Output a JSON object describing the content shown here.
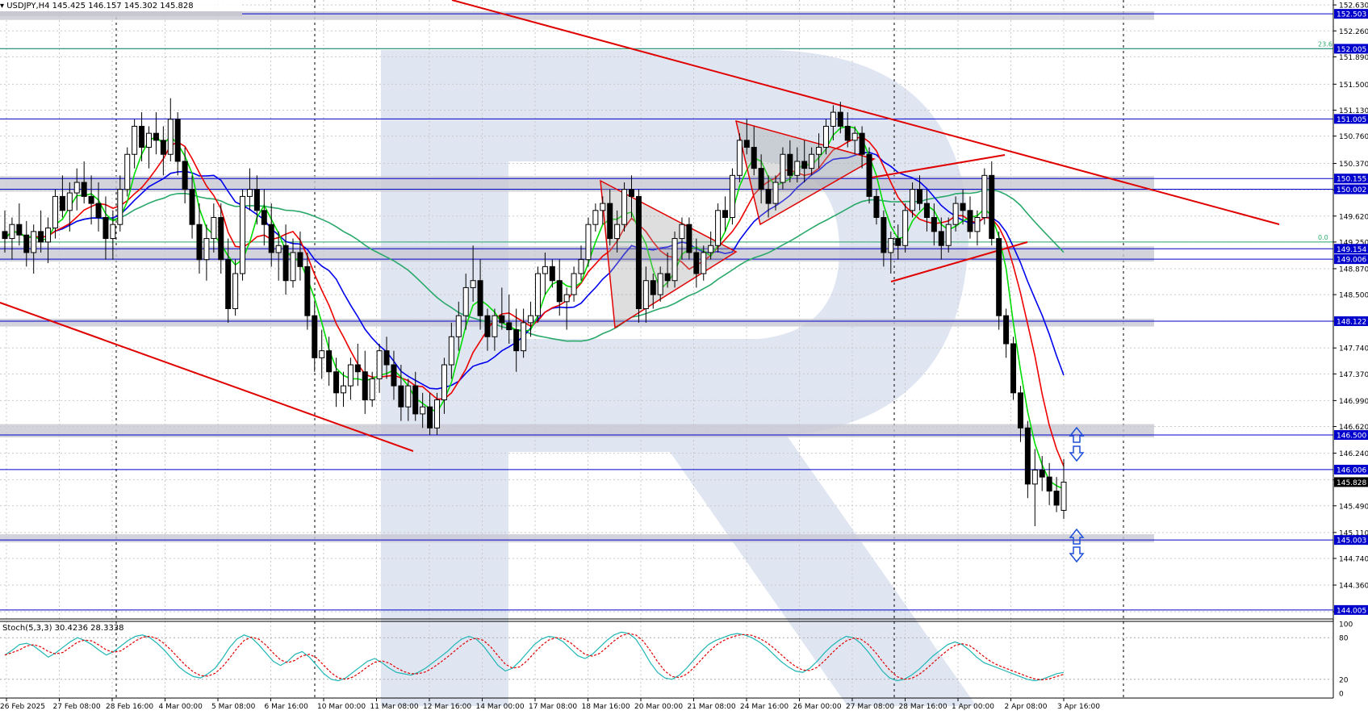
{
  "header": {
    "symbol_text": "USDJPY,H4  145.425 146.157 145.302 145.828",
    "stoch_text": "Stoch(5,3,3) 30.4236 28.3338"
  },
  "colors": {
    "bull_candle": "#ffffff",
    "bear_candle": "#000000",
    "ma_fast": "#00dd00",
    "ma_mid": "#ee0000",
    "ma_slow": "#0000ee",
    "ma_long": "#2aa86a",
    "level_line": "#0000cc",
    "level_band": "#c8c8d2",
    "trend_line": "#e00000",
    "stoch_main": "#1fb5b5",
    "stoch_signal": "#e00000",
    "watermark": "#dfe6f2",
    "arrow": "#1e4fd8"
  },
  "chart_data": {
    "type": "candlestick",
    "title": "USDJPY,H4",
    "ohlc_readout": {
      "open": 145.425,
      "high": 146.157,
      "low": 145.302,
      "close": 145.828
    },
    "ylim": [
      143.9,
      152.7
    ],
    "price_ticks": [
      "152.630",
      "152.260",
      "151.890",
      "151.500",
      "151.130",
      "150.760",
      "150.370",
      "149.990",
      "149.620",
      "149.250",
      "148.870",
      "148.500",
      "148.120",
      "147.740",
      "147.370",
      "146.990",
      "146.620",
      "146.240",
      "145.860",
      "145.490",
      "145.110",
      "144.740",
      "144.360",
      "143.980"
    ],
    "levels": [
      {
        "label": "152.503",
        "price": 152.503
      },
      {
        "label": "152.005",
        "price": 152.005
      },
      {
        "label": "151.005",
        "price": 151.005
      },
      {
        "label": "150.155",
        "price": 150.155
      },
      {
        "label": "150.002",
        "price": 150.002
      },
      {
        "label": "149.154",
        "price": 149.154
      },
      {
        "label": "149.006",
        "price": 149.006
      },
      {
        "label": "148.122",
        "price": 148.122
      },
      {
        "label": "146.500",
        "price": 146.5
      },
      {
        "label": "146.006",
        "price": 146.006
      },
      {
        "label": "145.003",
        "price": 145.003
      },
      {
        "label": "144.005",
        "price": 144.005
      }
    ],
    "current_price_label": "145.828",
    "fib_labels": [
      {
        "text": "23.6",
        "price": 152.005
      },
      {
        "text": "0.0",
        "price": 149.25
      }
    ],
    "zones": [
      {
        "top": 150.155,
        "bottom": 150.002
      },
      {
        "top": 149.154,
        "bottom": 149.006
      },
      {
        "top": 148.122,
        "bottom": 148.08
      },
      {
        "top": 146.62,
        "bottom": 146.5
      },
      {
        "top": 145.05,
        "bottom": 145.003
      },
      {
        "top": 152.503,
        "bottom": 152.45
      }
    ],
    "time_labels": [
      "26 Feb 2025",
      "27 Feb 08:00",
      "28 Feb 16:00",
      "4 Mar 00:00",
      "5 Mar 08:00",
      "6 Mar 16:00",
      "10 Mar 00:00",
      "11 Mar 08:00",
      "12 Mar 16:00",
      "14 Mar 00:00",
      "17 Mar 08:00",
      "18 Mar 16:00",
      "20 Mar 00:00",
      "21 Mar 08:00",
      "24 Mar 16:00",
      "26 Mar 00:00",
      "27 Mar 08:00",
      "28 Mar 16:00",
      "1 Apr 00:00",
      "2 Apr 08:00",
      "3 Apr 16:00"
    ],
    "candles": [
      [
        149.4,
        149.7,
        149.1,
        149.3
      ],
      [
        149.3,
        149.6,
        149.0,
        149.5
      ],
      [
        149.5,
        149.8,
        149.2,
        149.35
      ],
      [
        149.35,
        149.55,
        148.9,
        149.1
      ],
      [
        149.1,
        149.5,
        148.8,
        149.4
      ],
      [
        149.4,
        149.7,
        149.1,
        149.25
      ],
      [
        149.25,
        149.6,
        148.95,
        149.45
      ],
      [
        149.45,
        150.0,
        149.3,
        149.9
      ],
      [
        149.9,
        150.2,
        149.6,
        149.7
      ],
      [
        149.7,
        150.1,
        149.4,
        149.95
      ],
      [
        149.95,
        150.3,
        149.7,
        150.1
      ],
      [
        150.1,
        150.4,
        149.8,
        149.9
      ],
      [
        149.9,
        150.2,
        149.5,
        149.8
      ],
      [
        149.8,
        150.1,
        149.4,
        149.6
      ],
      [
        149.6,
        149.9,
        149.0,
        149.3
      ],
      [
        149.3,
        149.7,
        149.0,
        149.5
      ],
      [
        149.5,
        150.2,
        149.4,
        150.0
      ],
      [
        150.0,
        150.6,
        149.9,
        150.5
      ],
      [
        150.5,
        151.0,
        150.3,
        150.9
      ],
      [
        150.9,
        151.1,
        150.4,
        150.6
      ],
      [
        150.6,
        150.9,
        150.3,
        150.8
      ],
      [
        150.8,
        151.1,
        150.5,
        150.7
      ],
      [
        150.7,
        150.9,
        150.2,
        150.5
      ],
      [
        150.5,
        151.3,
        150.4,
        151.0
      ],
      [
        151.0,
        151.1,
        150.2,
        150.4
      ],
      [
        150.4,
        150.6,
        149.8,
        150.0
      ],
      [
        150.0,
        150.2,
        149.3,
        149.5
      ],
      [
        149.5,
        149.8,
        148.8,
        149.0
      ],
      [
        149.0,
        149.5,
        148.7,
        149.3
      ],
      [
        149.3,
        149.8,
        149.1,
        149.6
      ],
      [
        149.6,
        149.8,
        148.8,
        149.0
      ],
      [
        149.0,
        149.3,
        148.1,
        148.3
      ],
      [
        148.3,
        149.0,
        148.2,
        148.8
      ],
      [
        148.8,
        150.0,
        148.7,
        149.9
      ],
      [
        149.9,
        150.3,
        149.7,
        150.0
      ],
      [
        150.0,
        150.2,
        149.5,
        149.7
      ],
      [
        149.7,
        150.0,
        149.2,
        149.5
      ],
      [
        149.5,
        149.8,
        148.9,
        149.1
      ],
      [
        149.1,
        149.4,
        148.7,
        149.2
      ],
      [
        149.2,
        149.5,
        148.5,
        148.7
      ],
      [
        148.7,
        149.3,
        148.6,
        149.1
      ],
      [
        149.1,
        149.4,
        148.7,
        148.9
      ],
      [
        148.9,
        149.1,
        148.0,
        148.2
      ],
      [
        148.2,
        148.4,
        147.4,
        147.6
      ],
      [
        147.6,
        148.0,
        147.3,
        147.7
      ],
      [
        147.7,
        147.9,
        147.2,
        147.4
      ],
      [
        147.4,
        147.6,
        146.9,
        147.1
      ],
      [
        147.1,
        147.4,
        146.9,
        147.2
      ],
      [
        147.2,
        147.6,
        147.0,
        147.5
      ],
      [
        147.5,
        147.8,
        147.2,
        147.4
      ],
      [
        147.4,
        147.7,
        146.8,
        147.0
      ],
      [
        147.0,
        147.4,
        146.9,
        147.3
      ],
      [
        147.3,
        147.8,
        147.1,
        147.7
      ],
      [
        147.7,
        147.9,
        147.3,
        147.5
      ],
      [
        147.5,
        147.7,
        147.0,
        147.2
      ],
      [
        147.2,
        147.5,
        146.7,
        146.9
      ],
      [
        146.9,
        147.3,
        146.7,
        147.2
      ],
      [
        147.2,
        147.4,
        146.7,
        146.8
      ],
      [
        146.8,
        147.1,
        146.6,
        146.9
      ],
      [
        146.9,
        147.1,
        146.5,
        146.6
      ],
      [
        146.6,
        147.1,
        146.5,
        147.0
      ],
      [
        147.0,
        147.6,
        146.8,
        147.5
      ],
      [
        147.5,
        148.1,
        147.3,
        147.9
      ],
      [
        147.9,
        148.4,
        147.7,
        148.2
      ],
      [
        148.2,
        148.8,
        148.0,
        148.6
      ],
      [
        148.6,
        149.2,
        148.4,
        148.7
      ],
      [
        148.7,
        149.0,
        148.0,
        148.2
      ],
      [
        148.2,
        148.3,
        147.7,
        147.9
      ],
      [
        147.9,
        148.3,
        147.7,
        148.2
      ],
      [
        148.2,
        148.6,
        148.0,
        148.1
      ],
      [
        148.1,
        148.5,
        147.8,
        148.0
      ],
      [
        148.0,
        148.3,
        147.4,
        147.7
      ],
      [
        147.7,
        148.3,
        147.6,
        148.1
      ],
      [
        148.1,
        148.4,
        147.9,
        148.2
      ],
      [
        148.2,
        148.9,
        148.1,
        148.8
      ],
      [
        148.8,
        149.1,
        148.5,
        148.9
      ],
      [
        148.9,
        149.0,
        148.6,
        148.7
      ],
      [
        148.7,
        149.0,
        148.2,
        148.4
      ],
      [
        148.4,
        148.6,
        148.0,
        148.5
      ],
      [
        148.5,
        148.9,
        148.4,
        148.8
      ],
      [
        148.8,
        149.2,
        148.7,
        149.0
      ],
      [
        149.0,
        149.6,
        148.9,
        149.5
      ],
      [
        149.5,
        149.8,
        149.4,
        149.7
      ],
      [
        149.7,
        149.9,
        149.5,
        149.8
      ],
      [
        149.8,
        150.0,
        149.2,
        149.3
      ],
      [
        149.3,
        149.7,
        149.1,
        149.5
      ],
      [
        149.5,
        150.1,
        149.4,
        150.0
      ],
      [
        150.0,
        150.2,
        149.6,
        149.9
      ],
      [
        149.9,
        150.0,
        148.1,
        148.3
      ],
      [
        148.3,
        148.9,
        148.1,
        148.7
      ],
      [
        148.7,
        148.8,
        148.3,
        148.5
      ],
      [
        148.5,
        148.9,
        148.4,
        148.8
      ],
      [
        148.8,
        149.1,
        148.6,
        148.7
      ],
      [
        148.7,
        149.4,
        148.6,
        149.3
      ],
      [
        149.3,
        149.6,
        149.0,
        149.5
      ],
      [
        149.5,
        149.6,
        149.0,
        149.1
      ],
      [
        149.1,
        149.3,
        148.6,
        148.8
      ],
      [
        148.8,
        149.2,
        148.7,
        149.1
      ],
      [
        149.1,
        149.4,
        149.0,
        149.2
      ],
      [
        149.2,
        149.8,
        149.1,
        149.7
      ],
      [
        149.7,
        149.9,
        149.4,
        149.6
      ],
      [
        149.6,
        150.3,
        149.5,
        150.2
      ],
      [
        150.2,
        150.8,
        150.1,
        150.7
      ],
      [
        150.7,
        151.0,
        150.5,
        150.6
      ],
      [
        150.6,
        150.9,
        150.2,
        150.3
      ],
      [
        150.3,
        150.5,
        149.8,
        150.0
      ],
      [
        150.0,
        150.2,
        149.6,
        149.8
      ],
      [
        149.8,
        150.2,
        149.7,
        150.1
      ],
      [
        150.1,
        150.6,
        150.0,
        150.5
      ],
      [
        150.5,
        150.7,
        150.1,
        150.2
      ],
      [
        150.2,
        150.6,
        150.1,
        150.4
      ],
      [
        150.4,
        150.7,
        150.1,
        150.3
      ],
      [
        150.3,
        150.6,
        150.2,
        150.5
      ],
      [
        150.5,
        150.8,
        150.3,
        150.6
      ],
      [
        150.6,
        151.0,
        150.5,
        150.9
      ],
      [
        150.9,
        151.2,
        150.7,
        151.1
      ],
      [
        151.1,
        151.25,
        150.8,
        150.9
      ],
      [
        150.9,
        151.1,
        150.6,
        150.7
      ],
      [
        150.7,
        150.9,
        150.5,
        150.8
      ],
      [
        150.8,
        150.9,
        150.3,
        150.5
      ],
      [
        150.5,
        150.6,
        149.8,
        149.9
      ],
      [
        149.9,
        150.0,
        149.5,
        149.6
      ],
      [
        149.6,
        149.7,
        148.9,
        149.1
      ],
      [
        149.1,
        149.4,
        148.8,
        149.3
      ],
      [
        149.3,
        149.5,
        149.0,
        149.2
      ],
      [
        149.2,
        149.8,
        149.1,
        149.7
      ],
      [
        149.7,
        150.1,
        149.6,
        150.0
      ],
      [
        150.0,
        150.2,
        149.7,
        149.8
      ],
      [
        149.8,
        150.0,
        149.4,
        149.6
      ],
      [
        149.6,
        149.8,
        149.2,
        149.4
      ],
      [
        149.4,
        149.6,
        149.0,
        149.2
      ],
      [
        149.2,
        149.6,
        149.1,
        149.5
      ],
      [
        149.5,
        149.9,
        149.4,
        149.8
      ],
      [
        149.8,
        150.0,
        149.5,
        149.7
      ],
      [
        149.7,
        149.9,
        149.3,
        149.4
      ],
      [
        149.4,
        149.7,
        149.2,
        149.6
      ],
      [
        149.6,
        150.3,
        149.5,
        150.2
      ],
      [
        150.2,
        150.4,
        149.2,
        149.3
      ],
      [
        149.3,
        149.4,
        148.0,
        148.2
      ],
      [
        148.2,
        148.3,
        147.6,
        147.8
      ],
      [
        147.8,
        147.9,
        147.0,
        147.1
      ],
      [
        147.1,
        147.2,
        146.4,
        146.6
      ],
      [
        146.6,
        146.7,
        145.6,
        145.8
      ],
      [
        145.8,
        146.3,
        145.2,
        146.0
      ],
      [
        146.0,
        146.2,
        145.7,
        145.9
      ],
      [
        145.9,
        146.1,
        145.5,
        145.7
      ],
      [
        145.7,
        145.9,
        145.4,
        145.5
      ],
      [
        145.425,
        146.157,
        145.302,
        145.828
      ]
    ],
    "stoch_levels": [
      "100",
      "80",
      "20",
      "0"
    ],
    "stoch_readout": {
      "main": 30.4236,
      "signal": 28.3338
    },
    "stoch_main": [
      55,
      62,
      70,
      72,
      68,
      60,
      52,
      58,
      66,
      74,
      80,
      76,
      70,
      62,
      55,
      60,
      68,
      76,
      82,
      84,
      80,
      72,
      62,
      50,
      38,
      30,
      24,
      22,
      28,
      36,
      50,
      66,
      78,
      84,
      80,
      70,
      58,
      46,
      40,
      46,
      56,
      60,
      52,
      40,
      28,
      20,
      18,
      22,
      30,
      38,
      46,
      50,
      44,
      36,
      30,
      28,
      26,
      30,
      36,
      44,
      52,
      60,
      70,
      78,
      82,
      78,
      68,
      54,
      40,
      32,
      36,
      46,
      58,
      70,
      78,
      82,
      80,
      74,
      64,
      54,
      50,
      56,
      66,
      76,
      84,
      88,
      86,
      78,
      62,
      44,
      30,
      22,
      20,
      26,
      36,
      48,
      60,
      70,
      76,
      80,
      84,
      86,
      84,
      80,
      74,
      66,
      56,
      46,
      38,
      32,
      30,
      36,
      46,
      58,
      68,
      76,
      82,
      80,
      72,
      60,
      46,
      32,
      22,
      18,
      20,
      26,
      34,
      44,
      54,
      62,
      70,
      74,
      70,
      62,
      52,
      44,
      40,
      36,
      32,
      28,
      24,
      20,
      18,
      20,
      24,
      28,
      30
    ]
  }
}
